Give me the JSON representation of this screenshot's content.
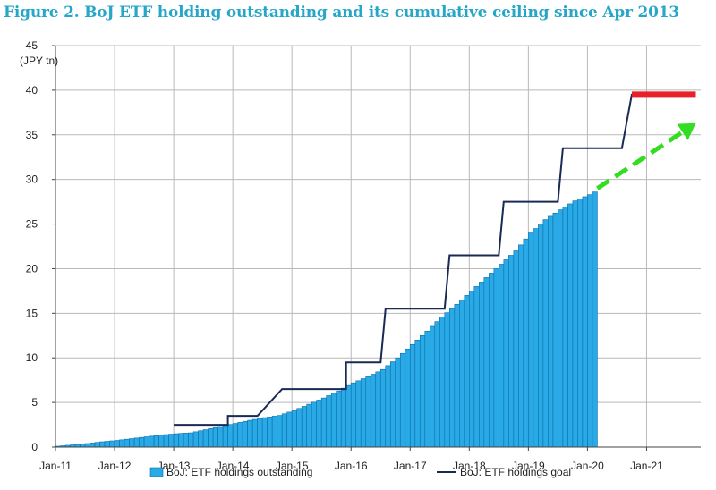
{
  "title": "Figure 2. BoJ ETF holding outstanding and its cumulative ceiling since Apr 2013",
  "colors": {
    "title": "#27a7c7",
    "bars": "#29a9e6",
    "bar_edge": "#0b6fa8",
    "goal_line": "#1a2a55",
    "target_marker": "#e8202a",
    "projection_arrow": "#33dd22",
    "grid": "#b9b9b9"
  },
  "chart_data": {
    "type": "bar",
    "title": "Figure 2. BoJ ETF holding outstanding and its cumulative ceiling since Apr 2013",
    "y_unit_label": "(JPY tn)",
    "ylim": [
      0,
      45
    ],
    "y_ticks": [
      0,
      5,
      10,
      15,
      20,
      25,
      30,
      35,
      40,
      45
    ],
    "x_range": [
      "2011-01",
      "2021-11"
    ],
    "x_tick_labels": [
      "Jan-11",
      "Jan-12",
      "Jan-13",
      "Jan-14",
      "Jan-15",
      "Jan-16",
      "Jan-17",
      "Jan-18",
      "Jan-19",
      "Jan-20",
      "Jan-21"
    ],
    "grid": true,
    "legend_position": "bottom",
    "series": [
      {
        "name": "BoJ: ETF holdings outstanding",
        "type": "bar",
        "frequency": "monthly",
        "points": [
          [
            "2011-01",
            0.1
          ],
          [
            "2011-04",
            0.25
          ],
          [
            "2011-07",
            0.4
          ],
          [
            "2011-10",
            0.6
          ],
          [
            "2012-01",
            0.75
          ],
          [
            "2012-04",
            0.95
          ],
          [
            "2012-07",
            1.15
          ],
          [
            "2012-10",
            1.35
          ],
          [
            "2013-01",
            1.5
          ],
          [
            "2013-04",
            1.6
          ],
          [
            "2013-07",
            1.95
          ],
          [
            "2013-10",
            2.3
          ],
          [
            "2014-01",
            2.65
          ],
          [
            "2014-04",
            3.0
          ],
          [
            "2014-07",
            3.3
          ],
          [
            "2014-10",
            3.55
          ],
          [
            "2015-01",
            4.1
          ],
          [
            "2015-04",
            4.8
          ],
          [
            "2015-07",
            5.5
          ],
          [
            "2015-10",
            6.3
          ],
          [
            "2016-01",
            7.2
          ],
          [
            "2016-04",
            7.9
          ],
          [
            "2016-07",
            8.7
          ],
          [
            "2016-10",
            10.0
          ],
          [
            "2017-01",
            11.5
          ],
          [
            "2017-04",
            13.0
          ],
          [
            "2017-07",
            14.6
          ],
          [
            "2017-10",
            16.0
          ],
          [
            "2018-01",
            17.5
          ],
          [
            "2018-04",
            19.0
          ],
          [
            "2018-07",
            20.5
          ],
          [
            "2018-10",
            22.0
          ],
          [
            "2019-01",
            24.0
          ],
          [
            "2019-04",
            25.5
          ],
          [
            "2019-07",
            26.6
          ],
          [
            "2019-10",
            27.6
          ],
          [
            "2020-01",
            28.3
          ],
          [
            "2020-02",
            28.6
          ]
        ]
      },
      {
        "name": "BoJ: ETF holdings goal",
        "type": "step-line",
        "points": [
          [
            "2013-01",
            2.5
          ],
          [
            "2013-12",
            2.5
          ],
          [
            "2013-12",
            3.5
          ],
          [
            "2014-06",
            3.5
          ],
          [
            "2014-11",
            6.5
          ],
          [
            "2015-12",
            6.5
          ],
          [
            "2015-12",
            9.5
          ],
          [
            "2016-07",
            9.5
          ],
          [
            "2016-08",
            15.5
          ],
          [
            "2017-08",
            15.5
          ],
          [
            "2017-09",
            21.5
          ],
          [
            "2018-07",
            21.5
          ],
          [
            "2018-08",
            27.5
          ],
          [
            "2019-07",
            27.5
          ],
          [
            "2019-08",
            33.5
          ],
          [
            "2020-08",
            33.5
          ],
          [
            "2020-10",
            39.5
          ],
          [
            "2021-11",
            39.5
          ]
        ]
      }
    ],
    "annotations": [
      {
        "kind": "target-line",
        "from": "2020-10",
        "to": "2021-11",
        "y": 39.5
      },
      {
        "kind": "projection-arrow",
        "from": [
          "2020-03",
          29.0
        ],
        "to": [
          "2021-11",
          36.3
        ]
      }
    ]
  }
}
